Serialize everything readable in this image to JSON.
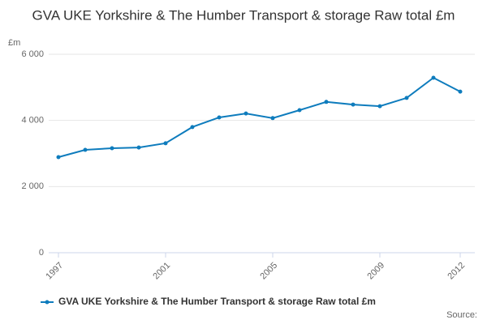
{
  "chart_data": {
    "type": "line",
    "title": "GVA UKE Yorkshire & The Humber Transport & storage Raw total £m",
    "y_label": "£m",
    "source": "Source:",
    "x": [
      1997,
      1998,
      1999,
      2000,
      2001,
      2002,
      2003,
      2004,
      2005,
      2006,
      2007,
      2008,
      2009,
      2010,
      2011,
      2012
    ],
    "series": [
      {
        "name": "GVA UKE Yorkshire & The Humber Transport & storage Raw total £m",
        "color": "#0e7cbd",
        "values": [
          2890,
          3110,
          3160,
          3180,
          3310,
          3800,
          4090,
          4210,
          4070,
          4310,
          4560,
          4480,
          4430,
          4680,
          5290,
          4870
        ]
      }
    ],
    "xlim": [
      1997,
      2012
    ],
    "xticks": [
      1997,
      2001,
      2005,
      2009,
      2012
    ],
    "ylim": [
      0,
      6000
    ],
    "yticks": [
      0,
      {
        "value": 2000,
        "label": "2 000"
      },
      {
        "value": 4000,
        "label": "4 000"
      },
      {
        "value": 6000,
        "label": "6 000"
      }
    ],
    "grid": true
  }
}
